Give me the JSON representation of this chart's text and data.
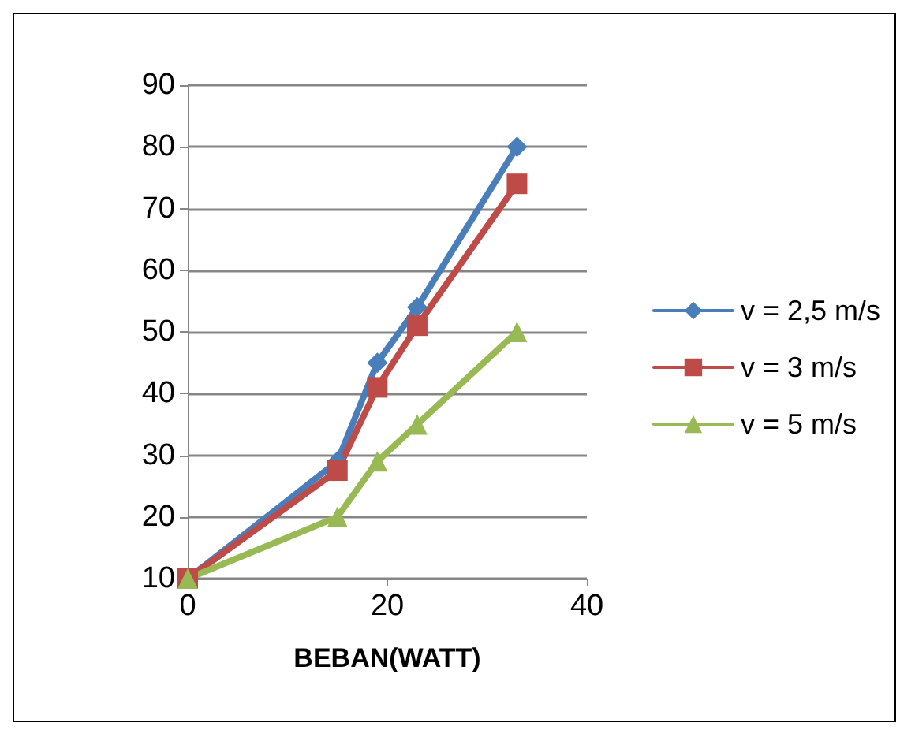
{
  "chart_data": {
    "type": "line",
    "xlabel": "BEBAN(WATT)",
    "x": [
      0,
      15,
      19,
      23,
      33
    ],
    "series": [
      {
        "name": "v = 2,5 m/s",
        "color": "#4a7ebb",
        "marker": "diamond",
        "values": [
          10,
          29,
          45,
          54,
          80
        ]
      },
      {
        "name": "v = 3 m/s",
        "color": "#be4b48",
        "marker": "square",
        "values": [
          10,
          27.5,
          41,
          51,
          74
        ]
      },
      {
        "name": "v = 5 m/s",
        "color": "#98b954",
        "marker": "triangle",
        "values": [
          10,
          20,
          29,
          35,
          50
        ]
      }
    ],
    "xlim": [
      0,
      40
    ],
    "xticks": [
      0,
      20,
      40
    ],
    "ylim": [
      10,
      90
    ],
    "yticks": [
      10,
      20,
      30,
      40,
      50,
      60,
      70,
      80,
      90
    ],
    "grid": "y",
    "legend": "right"
  }
}
